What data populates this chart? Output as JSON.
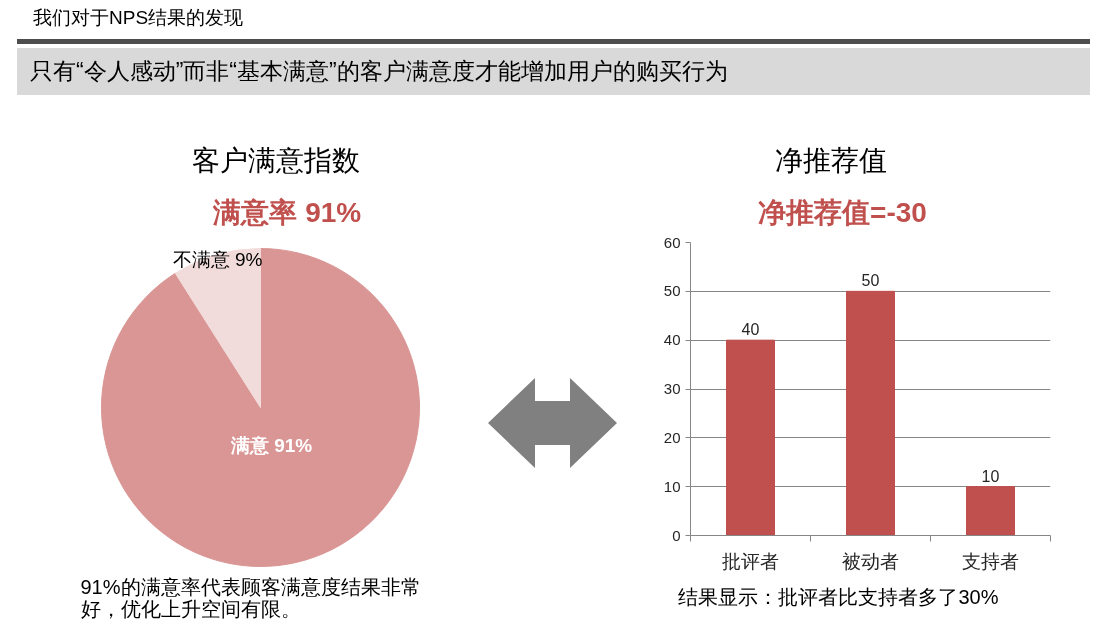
{
  "chart_data": [
    {
      "type": "other",
      "title": "我们对于NPS结果的发现",
      "subtitle": "只有“令人感动”而非“基本满意”的客户满意度才能增加用户的购买行为"
    },
    {
      "type": "pie",
      "title": "客户满意指数",
      "subtitle": "满意率 91%",
      "categories": [
        "满意",
        "不满意"
      ],
      "values": [
        91,
        9
      ],
      "colors": [
        "#d99694",
        "#f2dcdb"
      ],
      "value_labels": [
        "91%",
        "9%"
      ],
      "annotations": [
        "91%的满意率代表顾客满意度结果非常好，优化上升空间有限。"
      ]
    },
    {
      "type": "bar",
      "title": "净推荐值",
      "subtitle": "净推荐值=-30",
      "categories": [
        "批评者",
        "被动者",
        "支持者"
      ],
      "values": [
        40,
        50,
        10
      ],
      "color": "#c0504d",
      "ylim": [
        0,
        60
      ],
      "yticks": [
        0,
        10,
        20,
        30,
        40,
        50,
        60
      ],
      "grid": "y",
      "data_labels": true,
      "annotations": [
        "结果显示：批评者比支持者多了30%"
      ]
    }
  ]
}
